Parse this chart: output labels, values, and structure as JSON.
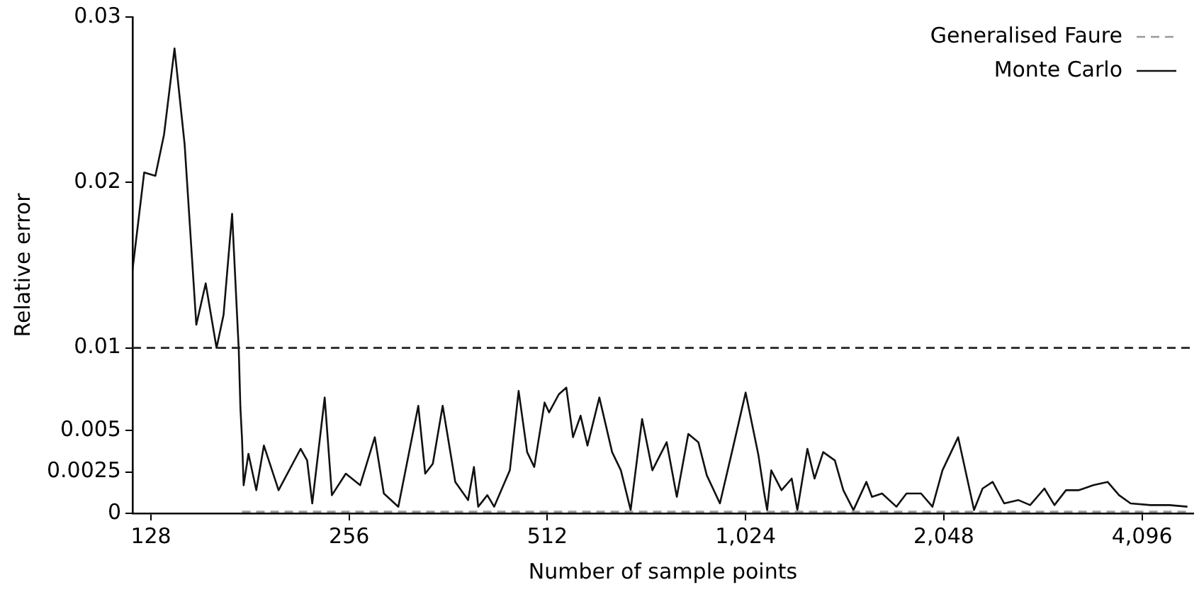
{
  "chart_data": {
    "type": "line",
    "xlabel": "Number of sample points",
    "ylabel": "Relative error",
    "log": "x",
    "xlim": [
      120,
      4900
    ],
    "xticks": [
      128,
      256,
      512,
      {
        "value": 1024,
        "label": "1,024"
      },
      {
        "value": 2048,
        "label": "2,048"
      },
      {
        "value": 4096,
        "label": "4,096"
      }
    ],
    "ylim": [
      0,
      0.03
    ],
    "yticks": [
      0,
      0.0025,
      0.005,
      0.01,
      0.02,
      0.03
    ],
    "grid": false,
    "legend": "top right",
    "marker": "none",
    "ref_lines": [
      {
        "axis": "y",
        "value": 0.01,
        "color": "#222222",
        "line_style": "dashed"
      }
    ],
    "series": [
      {
        "name": "Generalised Faure",
        "color": "#999999",
        "line_style": "dashed",
        "x": [
          176,
          256,
          512,
          1024,
          2048,
          4096,
          4800
        ],
        "values": [
          0.0001,
          0.0001,
          0.0001,
          0.0001,
          0.0001,
          0.0001,
          0.0001
        ]
      },
      {
        "name": "Monte Carlo",
        "color": "#111111",
        "line_style": "solid",
        "x": [
          120,
          125,
          130,
          134,
          139,
          144,
          150,
          155,
          161,
          165,
          170,
          174,
          175,
          176,
          177,
          180,
          185,
          190,
          200,
          216,
          221,
          225,
          235,
          241,
          253,
          266,
          280,
          289,
          304,
          326,
          334,
          343,
          355,
          371,
          388,
          396,
          402,
          415,
          425,
          449,
          463,
          477,
          489,
          507,
          515,
          533,
          547,
          560,
          575,
          589,
          614,
          642,
          662,
          685,
          713,
          739,
          777,
          805,
          838,
          868,
          894,
          936,
          984,
          1024,
          1071,
          1093,
          1104,
          1120,
          1161,
          1203,
          1227,
          1271,
          1303,
          1343,
          1399,
          1441,
          1493,
          1562,
          1593,
          1650,
          1735,
          1797,
          1891,
          1968,
          2038,
          2153,
          2208,
          2276,
          2345,
          2429,
          2529,
          2659,
          2769,
          2911,
          3015,
          3139,
          3283,
          3454,
          3631,
          3779,
          3935,
          4220,
          4507,
          4800
        ],
        "values": [
          0.0147,
          0.0206,
          0.0204,
          0.0229,
          0.0281,
          0.0223,
          0.0114,
          0.0139,
          0.01,
          0.012,
          0.0181,
          0.0099,
          0.0064,
          0.0045,
          0.0017,
          0.0036,
          0.0014,
          0.0041,
          0.0014,
          0.0039,
          0.0032,
          0.0006,
          0.007,
          0.0011,
          0.0024,
          0.0017,
          0.0046,
          0.0012,
          0.0004,
          0.0065,
          0.0024,
          0.003,
          0.0065,
          0.0019,
          0.0008,
          0.0028,
          0.0004,
          0.0011,
          0.0004,
          0.0026,
          0.0074,
          0.0037,
          0.0028,
          0.0067,
          0.0061,
          0.0072,
          0.0076,
          0.0046,
          0.0059,
          0.0041,
          0.007,
          0.0037,
          0.0026,
          0.0002,
          0.0057,
          0.0026,
          0.0043,
          0.001,
          0.0048,
          0.0043,
          0.0023,
          0.0006,
          0.0043,
          0.0073,
          0.0035,
          0.0012,
          0.0002,
          0.0026,
          0.0014,
          0.0021,
          0.0002,
          0.0039,
          0.0021,
          0.0037,
          0.0032,
          0.0014,
          0.0002,
          0.0019,
          0.001,
          0.0012,
          0.0004,
          0.0012,
          0.0012,
          0.0004,
          0.0026,
          0.0046,
          0.0026,
          0.0002,
          0.0015,
          0.0019,
          0.0006,
          0.0008,
          0.0005,
          0.0015,
          0.0005,
          0.0014,
          0.0014,
          0.0017,
          0.0019,
          0.0011,
          0.0006,
          0.0005,
          0.0005,
          0.0004
        ]
      }
    ]
  }
}
